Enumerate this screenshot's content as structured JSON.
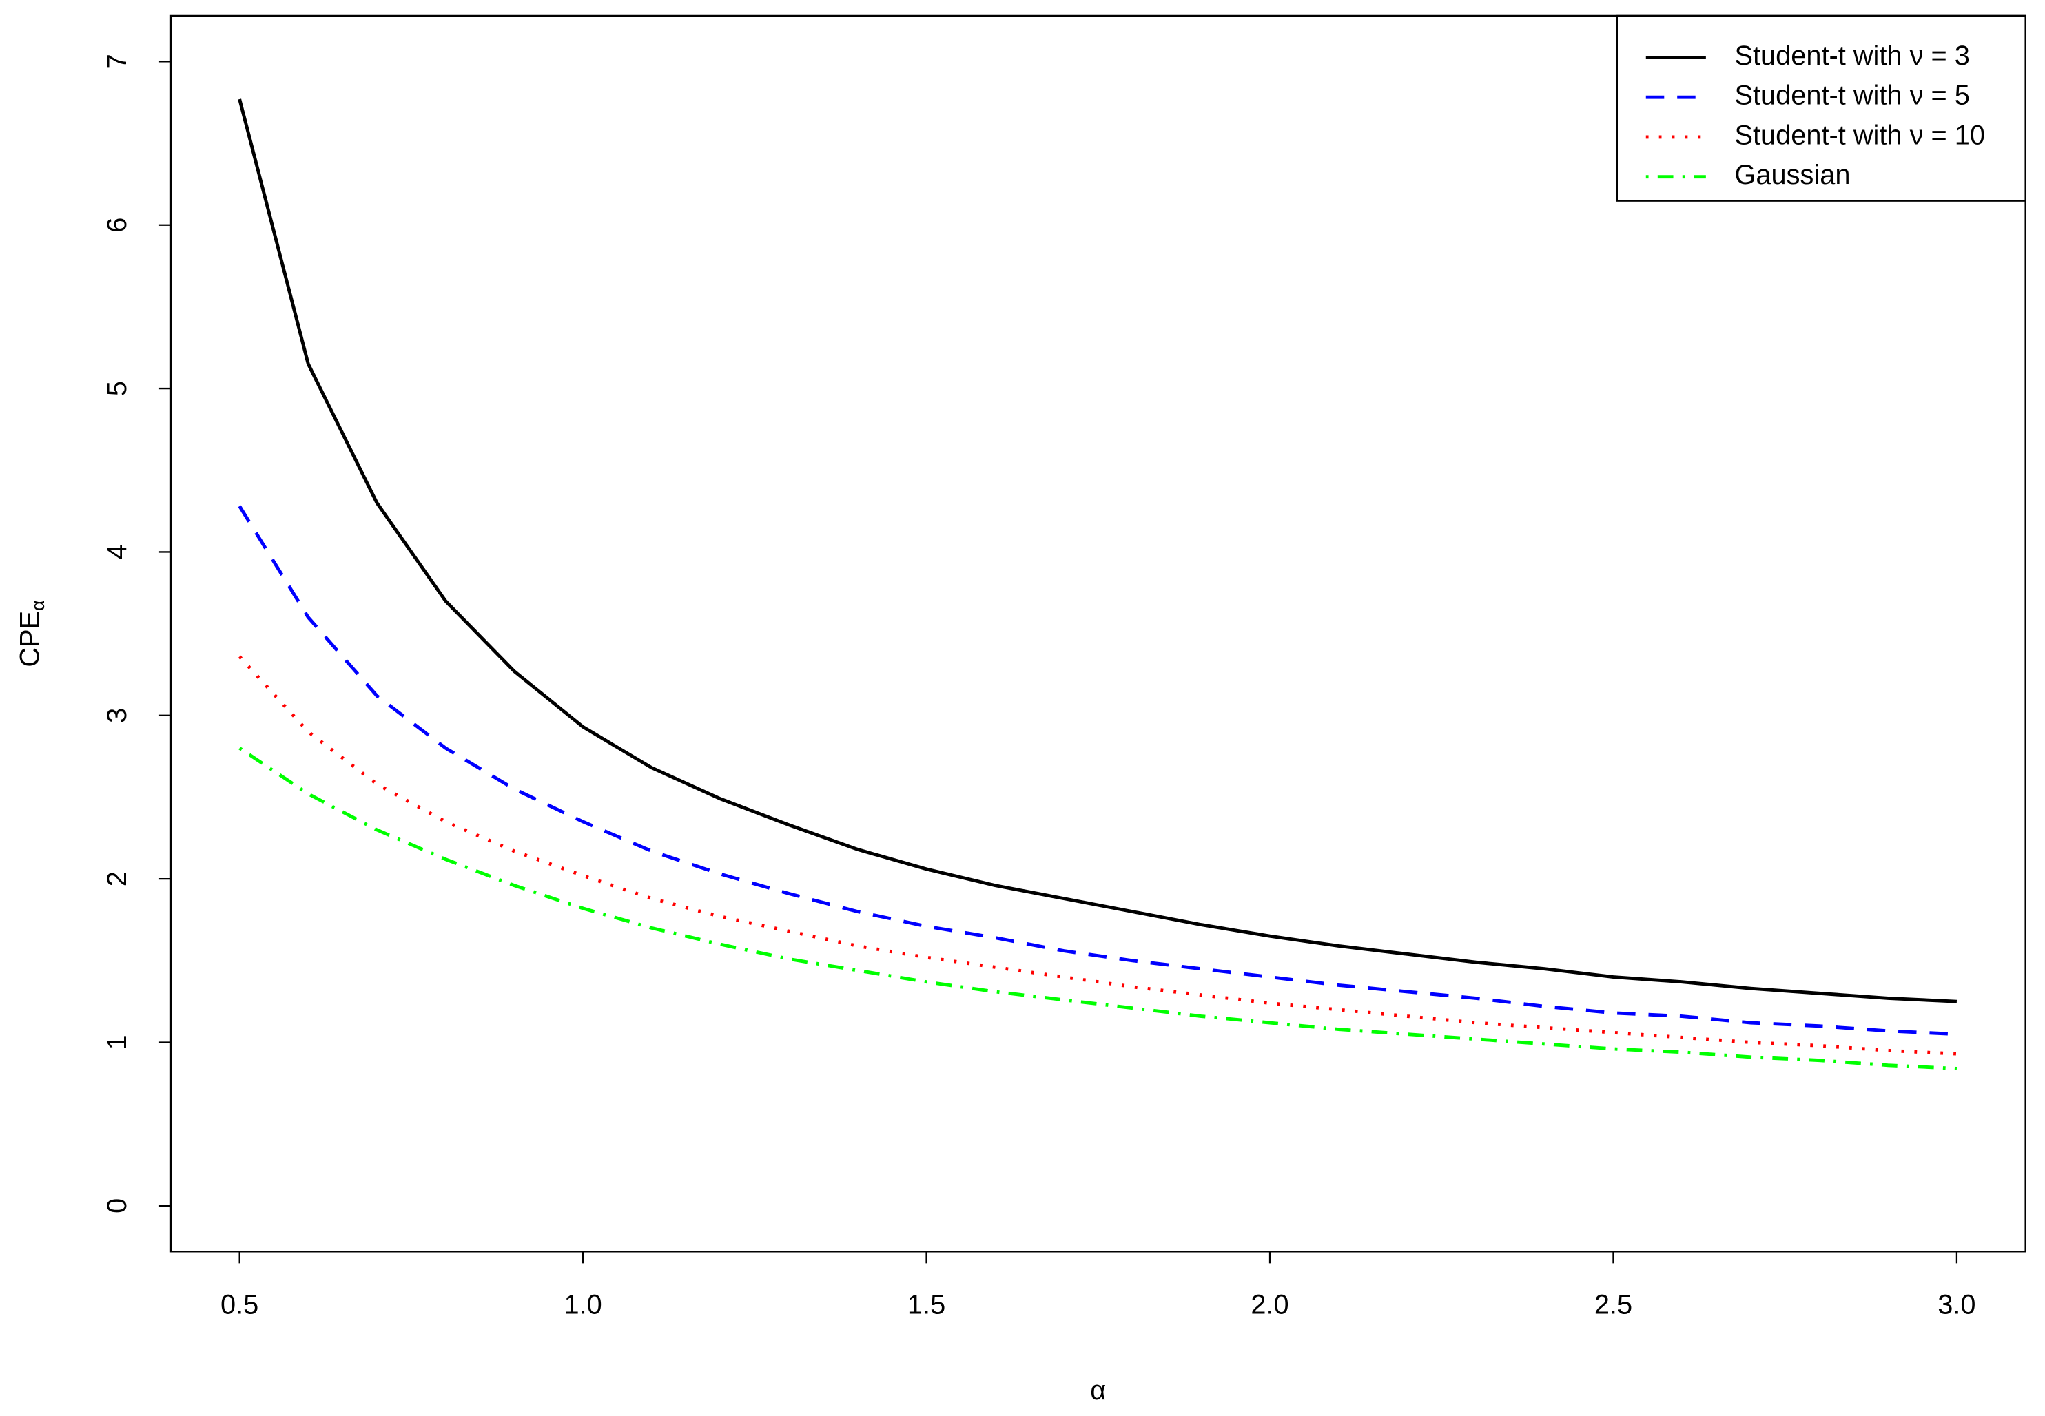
{
  "chart_data": {
    "type": "line",
    "xlabel": "α",
    "ylabel": "CPE",
    "ylabel_subscript": "α",
    "x": [
      0.5,
      0.6,
      0.7,
      0.8,
      0.9,
      1.0,
      1.1,
      1.2,
      1.3,
      1.4,
      1.5,
      1.6,
      1.7,
      1.8,
      1.9,
      2.0,
      2.1,
      2.2,
      2.3,
      2.4,
      2.5,
      2.6,
      2.7,
      2.8,
      2.9,
      3.0
    ],
    "series": [
      {
        "name": "Student-t with ν = 3",
        "color": "#000000",
        "linestyle": "solid",
        "values": [
          6.77,
          5.15,
          4.3,
          3.7,
          3.27,
          2.93,
          2.68,
          2.49,
          2.33,
          2.18,
          2.06,
          1.96,
          1.88,
          1.8,
          1.72,
          1.65,
          1.59,
          1.54,
          1.49,
          1.45,
          1.4,
          1.37,
          1.33,
          1.3,
          1.27,
          1.25
        ]
      },
      {
        "name": "Student-t with ν = 5",
        "color": "#0000ff",
        "linestyle": "dashed",
        "values": [
          4.28,
          3.6,
          3.12,
          2.8,
          2.55,
          2.35,
          2.17,
          2.03,
          1.91,
          1.8,
          1.71,
          1.64,
          1.56,
          1.5,
          1.45,
          1.4,
          1.35,
          1.31,
          1.27,
          1.22,
          1.18,
          1.16,
          1.12,
          1.1,
          1.07,
          1.05
        ]
      },
      {
        "name": "Student-t with ν = 10",
        "color": "#ff0000",
        "linestyle": "dotted",
        "values": [
          3.36,
          2.9,
          2.58,
          2.35,
          2.17,
          2.02,
          1.88,
          1.77,
          1.68,
          1.59,
          1.52,
          1.46,
          1.4,
          1.34,
          1.29,
          1.24,
          1.2,
          1.16,
          1.12,
          1.09,
          1.06,
          1.03,
          1.0,
          0.98,
          0.95,
          0.93
        ]
      },
      {
        "name": "Gaussian",
        "color": "#00ff00",
        "linestyle": "dashdot",
        "values": [
          2.8,
          2.52,
          2.3,
          2.12,
          1.96,
          1.82,
          1.7,
          1.6,
          1.51,
          1.44,
          1.37,
          1.31,
          1.26,
          1.21,
          1.16,
          1.12,
          1.08,
          1.05,
          1.02,
          0.99,
          0.96,
          0.94,
          0.91,
          0.89,
          0.86,
          0.84
        ]
      }
    ],
    "xlim": [
      0.4,
      3.1
    ],
    "xticks": [
      0.5,
      {
        "value": 1,
        "label": "1.0"
      },
      1.5,
      {
        "value": 2,
        "label": "2.0"
      },
      2.5,
      {
        "value": 3,
        "label": "3.0"
      }
    ],
    "ylim": [
      -0.28,
      7.28
    ],
    "yticks": [
      0,
      1,
      2,
      3,
      4,
      5,
      6,
      7
    ],
    "grid": false,
    "legend": "top-right"
  }
}
